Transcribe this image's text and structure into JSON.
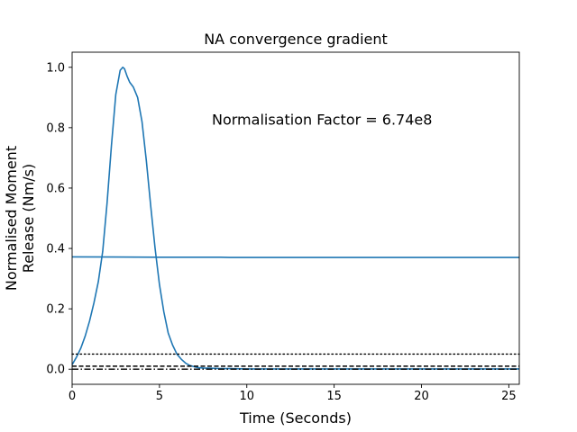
{
  "chart_data": {
    "type": "line",
    "title": "NA convergence gradient",
    "xlabel": "Time (Seconds)",
    "ylabel": "Normalised Moment Release (Nm/s)",
    "ylabel_lines": [
      "Normalised Moment",
      "Release (Nm/s)"
    ],
    "xlim": [
      0,
      25.6
    ],
    "ylim": [
      -0.05,
      1.05
    ],
    "x_ticks": [
      0,
      5,
      10,
      15,
      20,
      25
    ],
    "x_tick_labels": [
      "0",
      "5",
      "10",
      "15",
      "20",
      "25"
    ],
    "y_ticks": [
      0.0,
      0.2,
      0.4,
      0.6,
      0.8,
      1.0
    ],
    "y_tick_labels": [
      "0.0",
      "0.2",
      "0.4",
      "0.6",
      "0.8",
      "1.0"
    ],
    "grid": false,
    "annotations": [
      {
        "text": "Normalisation Factor = 6.74e8",
        "x": 8.0,
        "y": 0.81
      }
    ],
    "series": [
      {
        "color": "#1f77b4",
        "style": "solid",
        "x": [
          0,
          0.25,
          0.5,
          0.75,
          1.0,
          1.25,
          1.5,
          1.75,
          2.0,
          2.25,
          2.5,
          2.75,
          2.9,
          3.0,
          3.15,
          3.3,
          3.5,
          3.75,
          4.0,
          4.25,
          4.5,
          4.75,
          5.0,
          5.25,
          5.5,
          5.75,
          6.0,
          6.25,
          6.5,
          6.75,
          7.0,
          7.25,
          7.5,
          8.0,
          8.5,
          9.0,
          10,
          12,
          15,
          20,
          25.6
        ],
        "y": [
          0.015,
          0.04,
          0.07,
          0.11,
          0.16,
          0.22,
          0.29,
          0.39,
          0.55,
          0.74,
          0.91,
          0.99,
          1.0,
          0.995,
          0.97,
          0.95,
          0.935,
          0.9,
          0.82,
          0.69,
          0.54,
          0.4,
          0.28,
          0.19,
          0.12,
          0.08,
          0.05,
          0.033,
          0.02,
          0.012,
          0.008,
          0.005,
          0.004,
          0.003,
          0.002,
          0.002,
          0.001,
          0.001,
          0.001,
          0.001,
          0.001
        ]
      },
      {
        "color": "#1f77b4",
        "style": "solid",
        "x": [
          0,
          5,
          8.5,
          9,
          15,
          20,
          25.6
        ],
        "y": [
          0.372,
          0.371,
          0.371,
          0.37,
          0.37,
          0.37,
          0.37
        ]
      },
      {
        "color": "#000000",
        "style": "dotted",
        "x": [
          0,
          25.6
        ],
        "y": [
          0.05,
          0.05
        ]
      },
      {
        "color": "#000000",
        "style": "dashed",
        "x": [
          0,
          25.6
        ],
        "y": [
          0.01,
          0.01
        ]
      },
      {
        "color": "#000000",
        "style": "dashdot",
        "x": [
          0,
          25.6
        ],
        "y": [
          0.0,
          0.0
        ]
      }
    ]
  }
}
